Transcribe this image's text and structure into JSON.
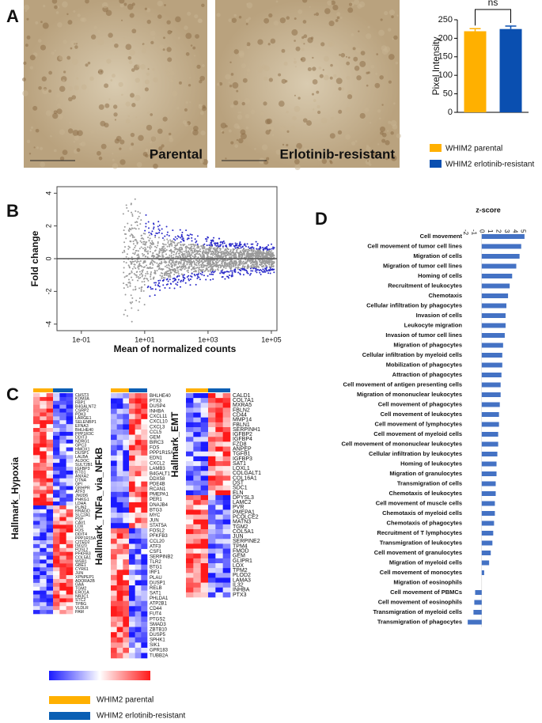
{
  "panels": [
    "A",
    "B",
    "C",
    "D"
  ],
  "photos": [
    "Parental",
    "Erlotinib-resistant"
  ],
  "chart_data": [
    {
      "type": "bar",
      "ylabel": "Pixel Intensity",
      "annotation": "ns",
      "categories": [
        null
      ],
      "series": [
        {
          "name": "WHIM2 parental",
          "color": "#ffb000",
          "values": [
            219
          ],
          "errors": [
            7
          ]
        },
        {
          "name": "WHIM2 erlotinib-resistant",
          "color": "#0a4fb0",
          "values": [
            225
          ],
          "errors": [
            8
          ]
        }
      ],
      "ylim": [
        0,
        250
      ],
      "yticks": [
        0,
        50,
        100,
        150,
        200,
        250
      ]
    },
    {
      "type": "scatter",
      "xlabel": "Mean of normalized counts",
      "ylabel": "Fold change",
      "xlog": true,
      "xlim": [
        0.017,
        150000
      ],
      "xticks": [
        {
          "value": 0.1,
          "label": "1e-01"
        },
        {
          "value": 10,
          "label": "1e+01"
        },
        {
          "value": 1000,
          "label": "1e+03"
        },
        {
          "value": 100000,
          "label": "1e+05"
        }
      ],
      "ylim": [
        -4.4,
        4.4
      ],
      "yticks": [
        -4,
        -2,
        0,
        2,
        4
      ]
    },
    {
      "type": "hbar",
      "title": "z-score",
      "color": "#4472c4",
      "categories": [
        "Cell movement",
        "Cell movement of tumor cell lines",
        "Migration of cells",
        "Migration of tumor cell lines",
        "Homing of cells",
        "Recruitment of leukocytes",
        "Chemotaxis",
        "Cellular infiltration by phagocytes",
        "Invasion of cells",
        "Leukocyte migration",
        "Invasion of tumor cell lines",
        "Migration of phagocytes",
        "Cellular infiltration by myeloid cells",
        "Mobilization of phagocytes",
        "Attraction of phagocytes",
        "Cell movement of antigen presenting cells",
        "Migration of mononuclear leukocytes",
        "Cell movement of phagocytes",
        "Cell movement of leukocytes",
        "Cell movement of lymphocytes",
        "Cell movement of myeloid cells",
        "Cell movement of mononuclear leukocytes",
        "Cellular infiltration by leukocytes",
        "Homing of leukocytes",
        "Migration of granulocytes",
        "Transmigration of cells",
        "Chemotaxis of leukocytes",
        "Cell movement of muscle cells",
        "Chemotaxis of myeloid cells",
        "Chemotaxis of phagocytes",
        "Recruitment of T lymphocytes",
        "Transmigration of leukocytes",
        "Cell movement of granulocytes",
        "Migration of myeloid cells",
        "Cell movement of monocytes",
        "Migration of eosinophils",
        "Cell movement of PBMCs",
        "Cell movement of eosinophils",
        "Transmigration of myeloid cells",
        "Transmigration of phagocytes"
      ],
      "values": [
        5.2,
        4.8,
        4.6,
        4.2,
        3.7,
        3.4,
        3.2,
        3.0,
        2.9,
        2.9,
        2.8,
        2.6,
        2.5,
        2.5,
        2.4,
        2.3,
        2.3,
        2.2,
        2.1,
        2.1,
        2.0,
        2.0,
        1.9,
        1.8,
        1.8,
        1.7,
        1.7,
        1.6,
        1.6,
        1.5,
        1.4,
        1.3,
        1.1,
        0.9,
        0.3,
        0,
        -0.8,
        -0.9,
        -1.0,
        -1.7
      ],
      "xlim": [
        -2,
        5.5
      ],
      "xticks": [
        -2,
        -1,
        0,
        1,
        2,
        3,
        4,
        5
      ]
    }
  ],
  "heatmaps": [
    {
      "title": "Hallmark_Hypoxia",
      "genes": [
        "CHST3",
        "KDM3A",
        "FBP1",
        "B4GALNT2",
        "CSRP2",
        "PDK3",
        "LARGE1",
        "SELENBP1",
        "EFNA3",
        "BHLHE40",
        "PPP1R3C",
        "DDIT3",
        "NDRG1",
        "GPC3",
        "HMOX1",
        "DUSP1",
        "LALBA",
        "ALDOC",
        "SULT2B1",
        "IGFBP3",
        "BTG1",
        "ANXA2",
        "DTNA",
        "GPI",
        "GRHPR",
        "ATF3",
        "JMJD6",
        "PHKG1",
        "LDHA",
        "PLIN2",
        "RRAGD",
        "SLC2A1",
        "PGF",
        "CAV1",
        "LOX",
        "FOS",
        "DDIT4",
        "PPP1R15A",
        "CITED2",
        "ISG20",
        "FOSL2",
        "PFKFB3",
        "COL5A1",
        "WSB1",
        "GBE1",
        "CYR61",
        "JUN",
        "XPNPEP1",
        "ADORA2B",
        "GAA",
        "TGM2",
        "ERO1A",
        "NR3C1",
        "STC2",
        "TPBG",
        "VLDLR",
        "PAM"
      ]
    },
    {
      "title": "Hallmark_TNFa_via_NFkB",
      "genes": [
        "BHLHE40",
        "PTX3",
        "DUSP4",
        "INHBA",
        "CXCL11",
        "CXCL10",
        "CXCL3",
        "CCL5",
        "GEM",
        "BIRC3",
        "FOS",
        "PPP1R15A",
        "EDN1",
        "CXCL2",
        "LAMB3",
        "B4GALT1",
        "DDX58",
        "PDE4B",
        "RCAN1",
        "PMEPA1",
        "PER1",
        "DNAJB4",
        "BTG3",
        "MYC",
        "JUN",
        "STAT5A",
        "FOSL2",
        "PFKFB3",
        "CCL20",
        "ATF3",
        "CSF1",
        "SERPINB2",
        "TLR2",
        "BTG1",
        "IRF1",
        "PLAU",
        "DUSP1",
        "RELB",
        "SAT1",
        "PHLDA1",
        "ATP2B1",
        "CD44",
        "FUT4",
        "PTGS2",
        "SMAD3",
        "ZBTB10",
        "DUSP5",
        "SPHK1",
        "SIK1",
        "GPR183",
        "TUBB2A"
      ]
    },
    {
      "title": "Hallmark_EMT",
      "genes": [
        "CALD1",
        "COL7A1",
        "MXRA5",
        "FBLN2",
        "CD44",
        "MMP14",
        "FBLN1",
        "SERPINH1",
        "IGFBP2",
        "IGFBP4",
        "FZD8",
        "ANPEP",
        "TGFB1",
        "IGFBP3",
        "SAT1",
        "LOXL1",
        "COLGALT1",
        "COL16A1",
        "DST",
        "SDC1",
        "ELN",
        "DPYSL3",
        "LAMC2",
        "PVR",
        "PMEPA1",
        "PCOLCE2",
        "MATN3",
        "TGM2",
        "COL5A1",
        "JUN",
        "SERPINE2",
        "TPM4",
        "FMOD",
        "GEM",
        "GLIPR1",
        "LOX",
        "TPM2",
        "PLOD2",
        "LAMA3",
        "IL32",
        "INHBA",
        "PTX3"
      ]
    }
  ],
  "legend": [
    {
      "name": "WHIM2 parental",
      "color": "#ffb000"
    },
    {
      "name": "WHIM2 erlotinib-resistant",
      "color": "#0a5fb4"
    }
  ]
}
